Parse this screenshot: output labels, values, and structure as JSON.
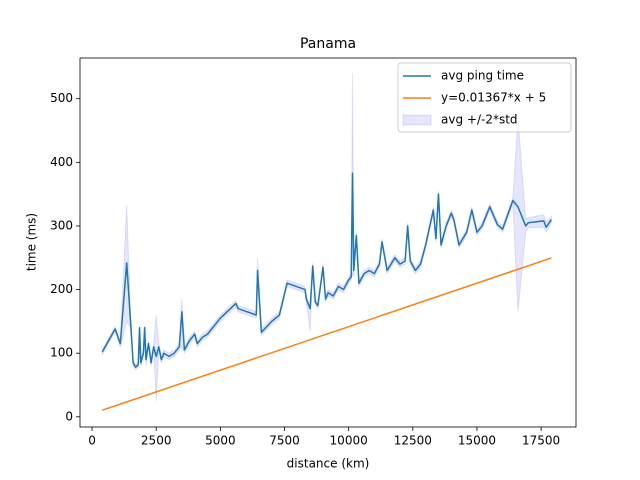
{
  "chart_data": {
    "type": "line",
    "title": "Panama",
    "x_label": "distance (km)",
    "y_label": "time (ms)",
    "xlim": [
      -470,
      18860
    ],
    "ylim": [
      -16,
      564
    ],
    "xticks": [
      0,
      2500,
      5000,
      7500,
      10000,
      12500,
      15000,
      17500
    ],
    "yticks": [
      0,
      100,
      200,
      300,
      400,
      500
    ],
    "legend": "upper right",
    "series": [
      {
        "name": "avg ping time",
        "color": "#1f77b4",
        "x": [
          400,
          900,
          1100,
          1350,
          1500,
          1600,
          1700,
          1800,
          1850,
          1900,
          2000,
          2050,
          2100,
          2200,
          2300,
          2400,
          2500,
          2600,
          2700,
          2800,
          3000,
          3200,
          3400,
          3500,
          3600,
          3800,
          4000,
          4100,
          4300,
          4500,
          4700,
          5000,
          5600,
          5700,
          6400,
          6450,
          6600,
          7000,
          7300,
          7600,
          8300,
          8350,
          8500,
          8600,
          8700,
          8800,
          9000,
          9100,
          9200,
          9400,
          9600,
          9800,
          10000,
          10100,
          10150,
          10200,
          10300,
          10400,
          10600,
          10800,
          11000,
          11200,
          11300,
          11500,
          11800,
          12000,
          12200,
          12300,
          12400,
          12600,
          12800,
          13000,
          13300,
          13400,
          13500,
          13600,
          13800,
          14000,
          14100,
          14300,
          14600,
          14800,
          15000,
          15200,
          15500,
          15800,
          16000,
          16400,
          16600,
          16900,
          17000,
          17600,
          17700,
          17900
        ],
        "values": [
          102,
          138,
          115,
          242,
          150,
          85,
          78,
          82,
          140,
          85,
          100,
          140,
          90,
          115,
          85,
          110,
          95,
          110,
          90,
          100,
          95,
          100,
          110,
          165,
          105,
          120,
          130,
          115,
          125,
          130,
          140,
          155,
          178,
          170,
          160,
          230,
          133,
          150,
          160,
          210,
          200,
          185,
          170,
          237,
          180,
          175,
          235,
          185,
          195,
          190,
          205,
          200,
          215,
          220,
          383,
          230,
          285,
          210,
          225,
          230,
          225,
          240,
          275,
          230,
          250,
          240,
          245,
          300,
          245,
          230,
          240,
          270,
          325,
          280,
          350,
          270,
          300,
          320,
          310,
          270,
          290,
          325,
          290,
          300,
          330,
          302,
          295,
          340,
          330,
          300,
          305,
          308,
          298,
          310
        ]
      },
      {
        "name": "y=0.01367*x + 5",
        "color": "#ff7f0e",
        "x": [
          400,
          17900
        ],
        "values": [
          10.47,
          249.69
        ]
      }
    ],
    "band": {
      "name": "avg +/-2*std",
      "color": "#0000ff",
      "lower": [
        98,
        134,
        110,
        150,
        140,
        80,
        74,
        78,
        100,
        80,
        95,
        136,
        80,
        110,
        80,
        105,
        25,
        105,
        85,
        95,
        90,
        95,
        105,
        110,
        100,
        115,
        125,
        110,
        120,
        125,
        135,
        150,
        173,
        165,
        155,
        210,
        128,
        145,
        155,
        205,
        195,
        180,
        135,
        232,
        175,
        170,
        230,
        180,
        190,
        185,
        200,
        195,
        210,
        215,
        225,
        220,
        280,
        205,
        220,
        225,
        220,
        235,
        270,
        225,
        245,
        235,
        240,
        295,
        240,
        225,
        235,
        265,
        320,
        275,
        345,
        265,
        295,
        315,
        305,
        265,
        285,
        320,
        285,
        295,
        325,
        297,
        290,
        335,
        165,
        290,
        297,
        298,
        290,
        305
      ],
      "upper": [
        106,
        142,
        120,
        333,
        160,
        90,
        82,
        86,
        142,
        90,
        105,
        144,
        100,
        120,
        90,
        115,
        160,
        115,
        95,
        105,
        100,
        105,
        115,
        185,
        110,
        125,
        135,
        120,
        130,
        135,
        145,
        160,
        183,
        175,
        165,
        250,
        138,
        155,
        165,
        215,
        205,
        190,
        175,
        242,
        185,
        180,
        240,
        190,
        200,
        195,
        210,
        205,
        220,
        225,
        540,
        240,
        290,
        215,
        230,
        235,
        230,
        245,
        280,
        235,
        255,
        245,
        250,
        305,
        250,
        235,
        245,
        275,
        330,
        285,
        355,
        275,
        305,
        325,
        315,
        275,
        295,
        330,
        295,
        305,
        335,
        307,
        300,
        345,
        470,
        310,
        313,
        318,
        306,
        315
      ]
    }
  }
}
